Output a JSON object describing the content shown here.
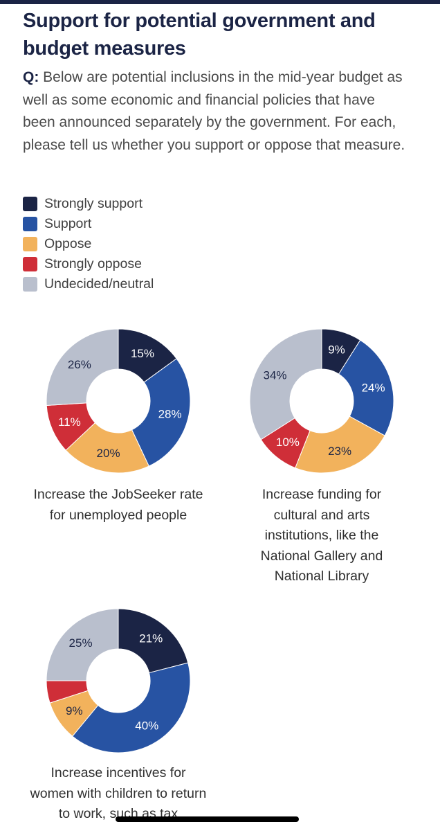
{
  "header": {
    "title": "Support for potential government and budget measures",
    "question_prefix": "Q:",
    "question_text": " Below are potential inclusions in the mid-year budget as well as some economic and financial policies that have been announced separately by the government. For each, please tell us whether you support or oppose that measure."
  },
  "legend": [
    {
      "label": "Strongly support",
      "color": "#1b2445"
    },
    {
      "label": "Support",
      "color": "#2753a3"
    },
    {
      "label": "Oppose",
      "color": "#f2b25c"
    },
    {
      "label": "Strongly oppose",
      "color": "#cf2e38"
    },
    {
      "label": "Undecided/neutral",
      "color": "#b9bfcd"
    }
  ],
  "chart_data": [
    {
      "type": "pie",
      "title": "Increase the JobSeeker rate for unemployed people",
      "categories": [
        "Strongly support",
        "Support",
        "Oppose",
        "Strongly oppose",
        "Undecided/neutral"
      ],
      "values": [
        15,
        28,
        20,
        11,
        26
      ],
      "labels": [
        "15%",
        "28%",
        "20%",
        "11%",
        "26%"
      ],
      "colors": [
        "#1b2445",
        "#2753a3",
        "#f2b25c",
        "#cf2e38",
        "#b9bfcd"
      ]
    },
    {
      "type": "pie",
      "title": "Increase funding for cultural and arts institutions, like the National Gallery and National Library",
      "categories": [
        "Strongly support",
        "Support",
        "Oppose",
        "Strongly oppose",
        "Undecided/neutral"
      ],
      "values": [
        9,
        24,
        23,
        10,
        34
      ],
      "labels": [
        "9%",
        "24%",
        "23%",
        "10%",
        "34%"
      ],
      "colors": [
        "#1b2445",
        "#2753a3",
        "#f2b25c",
        "#cf2e38",
        "#b9bfcd"
      ]
    },
    {
      "type": "pie",
      "title": "Increase incentives for women with children to return to work, such as tax",
      "categories": [
        "Strongly support",
        "Support",
        "Oppose",
        "Strongly oppose",
        "Undecided/neutral"
      ],
      "values": [
        21,
        40,
        9,
        5,
        25
      ],
      "labels": [
        "21%",
        "40%",
        "9%",
        "",
        "25%"
      ],
      "colors": [
        "#1b2445",
        "#2753a3",
        "#f2b25c",
        "#cf2e38",
        "#b9bfcd"
      ]
    }
  ]
}
